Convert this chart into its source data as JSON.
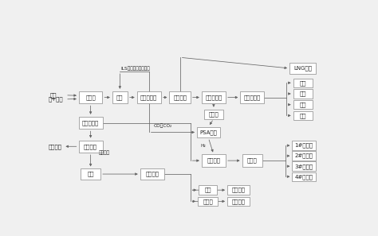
{
  "bg": "#f0f0f0",
  "box_fc": "#ffffff",
  "box_ec": "#888888",
  "ac": "#666666",
  "tc": "#222222",
  "fs": 5.0,
  "fss": 4.2,
  "lw": 0.55,
  "ms": 4.5,
  "boxes": {
    "煤制气": [
      0.148,
      0.62,
      0.08,
      0.068
    ],
    "变换": [
      0.248,
      0.62,
      0.052,
      0.068
    ],
    "低温甲醇洗": [
      0.347,
      0.62,
      0.082,
      0.068
    ],
    "甲烷分离": [
      0.453,
      0.62,
      0.072,
      0.068
    ],
    "低碳醇合成": [
      0.568,
      0.62,
      0.082,
      0.068
    ],
    "低碳醇分离": [
      0.7,
      0.62,
      0.082,
      0.068
    ],
    "煤气水分离": [
      0.148,
      0.48,
      0.082,
      0.068
    ],
    "酚氨回收": [
      0.148,
      0.35,
      0.082,
      0.068
    ],
    "粗酚": [
      0.148,
      0.198,
      0.068,
      0.058
    ],
    "粗酚精制": [
      0.358,
      0.198,
      0.082,
      0.058
    ],
    "弛放气": [
      0.568,
      0.528,
      0.065,
      0.052
    ],
    "PSA分离": [
      0.55,
      0.428,
      0.078,
      0.06
    ],
    "焦油加氢": [
      0.568,
      0.272,
      0.082,
      0.068
    ],
    "加氢油": [
      0.7,
      0.272,
      0.07,
      0.068
    ],
    "LNG产品": [
      0.872,
      0.78,
      0.09,
      0.058
    ],
    "甲醇": [
      0.872,
      0.7,
      0.065,
      0.05
    ],
    "乙醇": [
      0.872,
      0.64,
      0.065,
      0.05
    ],
    "丙醇": [
      0.872,
      0.58,
      0.065,
      0.05
    ],
    "丁醇": [
      0.872,
      0.52,
      0.065,
      0.05
    ],
    "1#加氢油": [
      0.876,
      0.355,
      0.08,
      0.05
    ],
    "2#加氢油": [
      0.876,
      0.298,
      0.08,
      0.05
    ],
    "3#加氢油": [
      0.876,
      0.241,
      0.08,
      0.05
    ],
    "4#加氢油": [
      0.876,
      0.184,
      0.08,
      0.05
    ],
    "苯酚": [
      0.548,
      0.11,
      0.062,
      0.05
    ],
    "二甲酚": [
      0.548,
      0.048,
      0.068,
      0.05
    ],
    "邻位甲酚": [
      0.652,
      0.11,
      0.075,
      0.05
    ],
    "对位甲酚": [
      0.652,
      0.048,
      0.075,
      0.05
    ]
  }
}
